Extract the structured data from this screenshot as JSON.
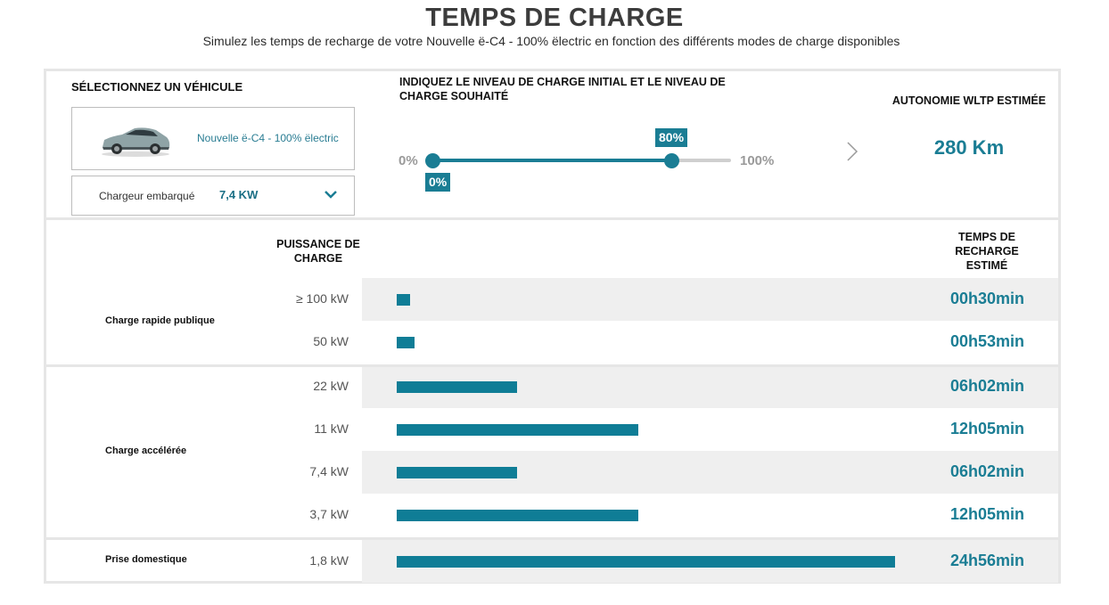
{
  "header": {
    "title": "TEMPS DE CHARGE",
    "subtitle": "Simulez les temps de recharge de votre Nouvelle ë-C4 - 100% ëlectric en fonction des différents modes de charge disponibles"
  },
  "vehicle": {
    "section_label": "SÉLECTIONNEZ UN VÉHICULE",
    "name": "Nouvelle ë-C4 - 100% ëlectric",
    "charger_label": "Chargeur embarqué",
    "charger_value": "7,4 KW"
  },
  "charge_level": {
    "section_label": "INDIQUEZ LE NIVEAU DE CHARGE INITIAL ET LE NIVEAU DE CHARGE SOUHAITÉ",
    "min_label": "0%",
    "max_label": "100%",
    "initial": 0,
    "initial_label": "0%",
    "target": 80,
    "target_label": "80%"
  },
  "autonomy": {
    "label": "AUTONOMIE WLTP ESTIMÉE",
    "value": "280 Km"
  },
  "table": {
    "power_header": "PUISSANCE DE CHARGE",
    "time_header": "TEMPS DE RECHARGE ESTIMÉ",
    "categories": [
      {
        "label": "Charge rapide publique"
      },
      {
        "label": "Charge accélérée"
      },
      {
        "label": "Prise domestique"
      }
    ],
    "rows": [
      {
        "power": "≥ 100 kW",
        "time": "00h30min",
        "minutes": 30
      },
      {
        "power": "50 kW",
        "time": "00h53min",
        "minutes": 53
      },
      {
        "power": "22 kW",
        "time": "06h02min",
        "minutes": 362
      },
      {
        "power": "11 kW",
        "time": "12h05min",
        "minutes": 725
      },
      {
        "power": "7,4 kW",
        "time": "06h02min",
        "minutes": 362
      },
      {
        "power": "3,7 kW",
        "time": "12h05min",
        "minutes": 725
      },
      {
        "power": "1,8 kW",
        "time": "24h56min",
        "minutes": 1496
      }
    ]
  },
  "colors": {
    "accent": "#1a7d94",
    "bar": "#0f7d96",
    "row_shade": "#efefef",
    "border": "#e6e6e6"
  }
}
